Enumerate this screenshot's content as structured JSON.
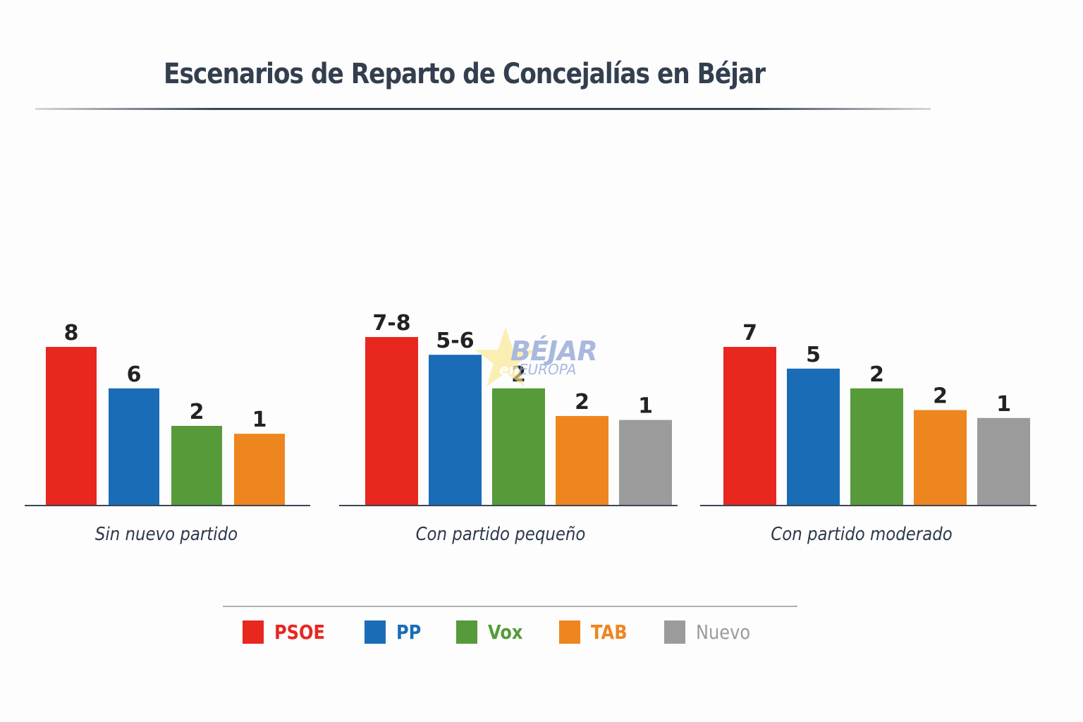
{
  "chart_data": {
    "type": "bar",
    "title": "Escenarios de Reparto de Concejalías en Béjar",
    "xlabel": "",
    "ylabel": "",
    "grid": false,
    "legend_position": "bottom-center",
    "legend": [
      {
        "name": "PSOE",
        "color": "#e8271f"
      },
      {
        "name": "PP",
        "color": "#1b6cb7"
      },
      {
        "name": "Vox",
        "color": "#569a3a"
      },
      {
        "name": "TAB",
        "color": "#ee861f"
      },
      {
        "name": "Nuevo",
        "color": "#9b9b9b"
      }
    ],
    "groups": [
      {
        "name": "Sin nuevo partido",
        "bars": [
          {
            "party": "PSOE",
            "label": "8",
            "value": 8,
            "display": 8.0
          },
          {
            "party": "PP",
            "label": "6",
            "value": 6,
            "display": 5.9
          },
          {
            "party": "Vox",
            "label": "2",
            "value": 2,
            "display": 4.0
          },
          {
            "party": "TAB",
            "label": "1",
            "value": 1,
            "display": 3.6
          }
        ]
      },
      {
        "name": "Con partido pequeño",
        "bars": [
          {
            "party": "PSOE",
            "label": "7-8",
            "value": 7.5,
            "display": 8.5
          },
          {
            "party": "PP",
            "label": "5-6",
            "value": 5.5,
            "display": 7.6
          },
          {
            "party": "Vox",
            "label": "2",
            "value": 2,
            "display": 5.9
          },
          {
            "party": "TAB",
            "label": "2",
            "value": 2,
            "display": 4.5
          },
          {
            "party": "Nuevo",
            "label": "1",
            "value": 1,
            "display": 4.3
          }
        ]
      },
      {
        "name": "Con partido moderado",
        "bars": [
          {
            "party": "PSOE",
            "label": "7",
            "value": 7,
            "display": 8.0
          },
          {
            "party": "PP",
            "label": "5",
            "value": 5,
            "display": 6.9
          },
          {
            "party": "Vox",
            "label": "2",
            "value": 2,
            "display": 5.9
          },
          {
            "party": "TAB",
            "label": "2",
            "value": 2,
            "display": 4.8
          },
          {
            "party": "Nuevo",
            "label": "1",
            "value": 1,
            "display": 4.4
          }
        ]
      }
    ]
  },
  "watermark": {
    "main": "BÉJAR",
    "prefix": "en",
    "sub": "EUROPA"
  }
}
